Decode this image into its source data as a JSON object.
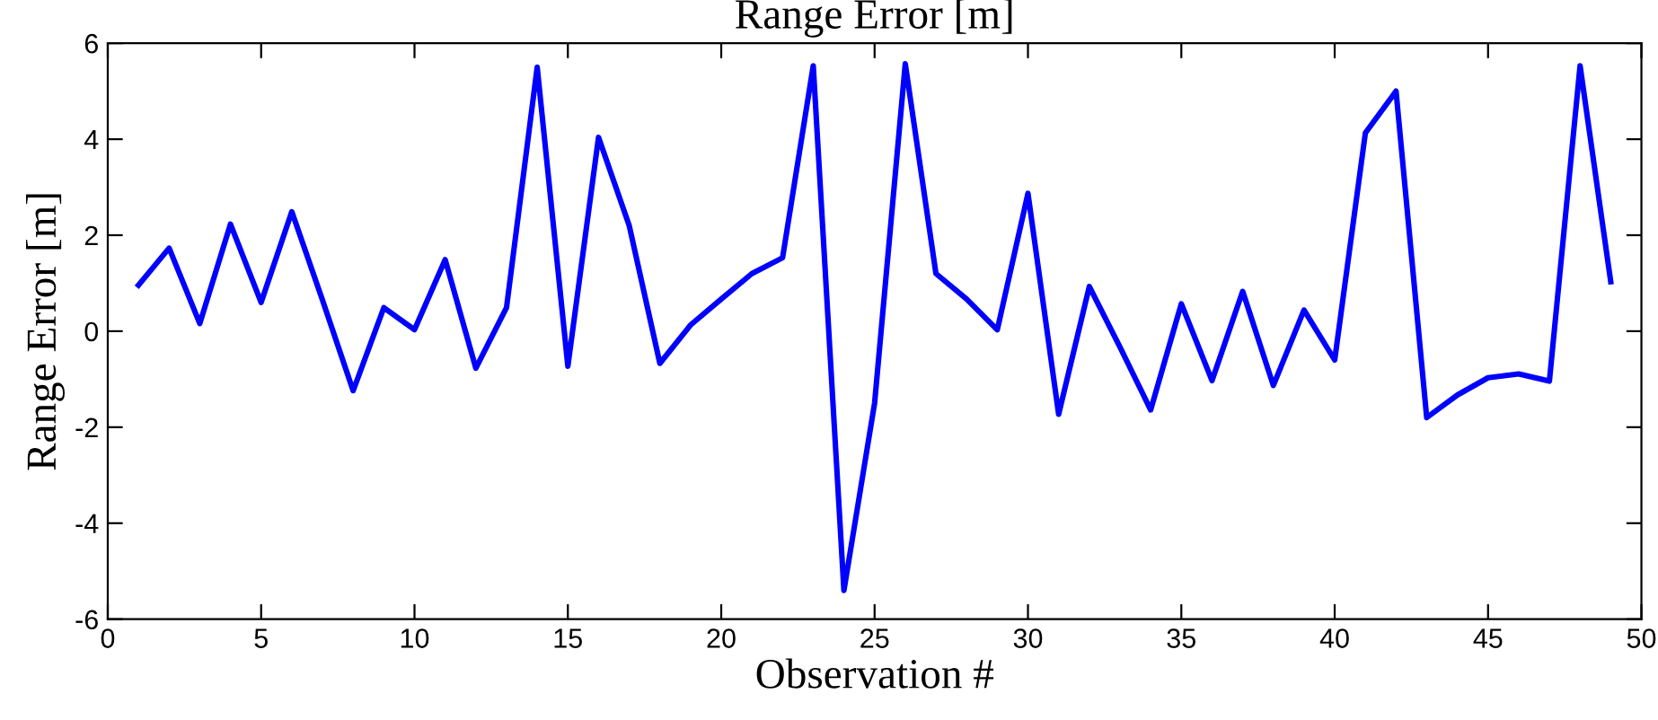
{
  "chart_data": {
    "type": "line",
    "title": "Range Error [m]",
    "xlabel": "Observation #",
    "ylabel": "Range Error [m]",
    "x": [
      1,
      2,
      3,
      4,
      5,
      6,
      7,
      8,
      9,
      10,
      11,
      12,
      13,
      14,
      15,
      16,
      17,
      18,
      19,
      20,
      21,
      22,
      23,
      24,
      25,
      26,
      27,
      28,
      29,
      30,
      31,
      32,
      33,
      34,
      35,
      36,
      37,
      38,
      39,
      40,
      41,
      42,
      43,
      44,
      45,
      46,
      47,
      48,
      49
    ],
    "series": [
      {
        "color": "#0000ff",
        "values": [
          0.96,
          1.73,
          0.16,
          2.23,
          0.6,
          2.49,
          0.65,
          -1.24,
          0.49,
          0.03,
          1.49,
          -0.77,
          0.49,
          5.5,
          -0.73,
          4.04,
          2.2,
          -0.67,
          0.13,
          0.67,
          1.2,
          1.53,
          5.53,
          -5.4,
          -1.5,
          5.57,
          1.2,
          0.67,
          0.03,
          2.87,
          -1.73,
          0.93,
          -0.33,
          -1.64,
          0.57,
          -1.03,
          0.83,
          -1.13,
          0.44,
          -0.6,
          4.13,
          5.0,
          -1.8,
          -1.33,
          -0.97,
          -0.89,
          -1.04,
          5.53,
          1.03
        ]
      }
    ],
    "xlim": [
      0,
      50
    ],
    "ylim": [
      -6,
      6
    ],
    "xticks": [
      0,
      5,
      10,
      15,
      20,
      25,
      30,
      35,
      40,
      45,
      50
    ],
    "yticks": [
      -6,
      -4,
      -2,
      0,
      2,
      4,
      6
    ],
    "grid": false,
    "legend": false,
    "marker": "none",
    "line_style": "solid"
  }
}
